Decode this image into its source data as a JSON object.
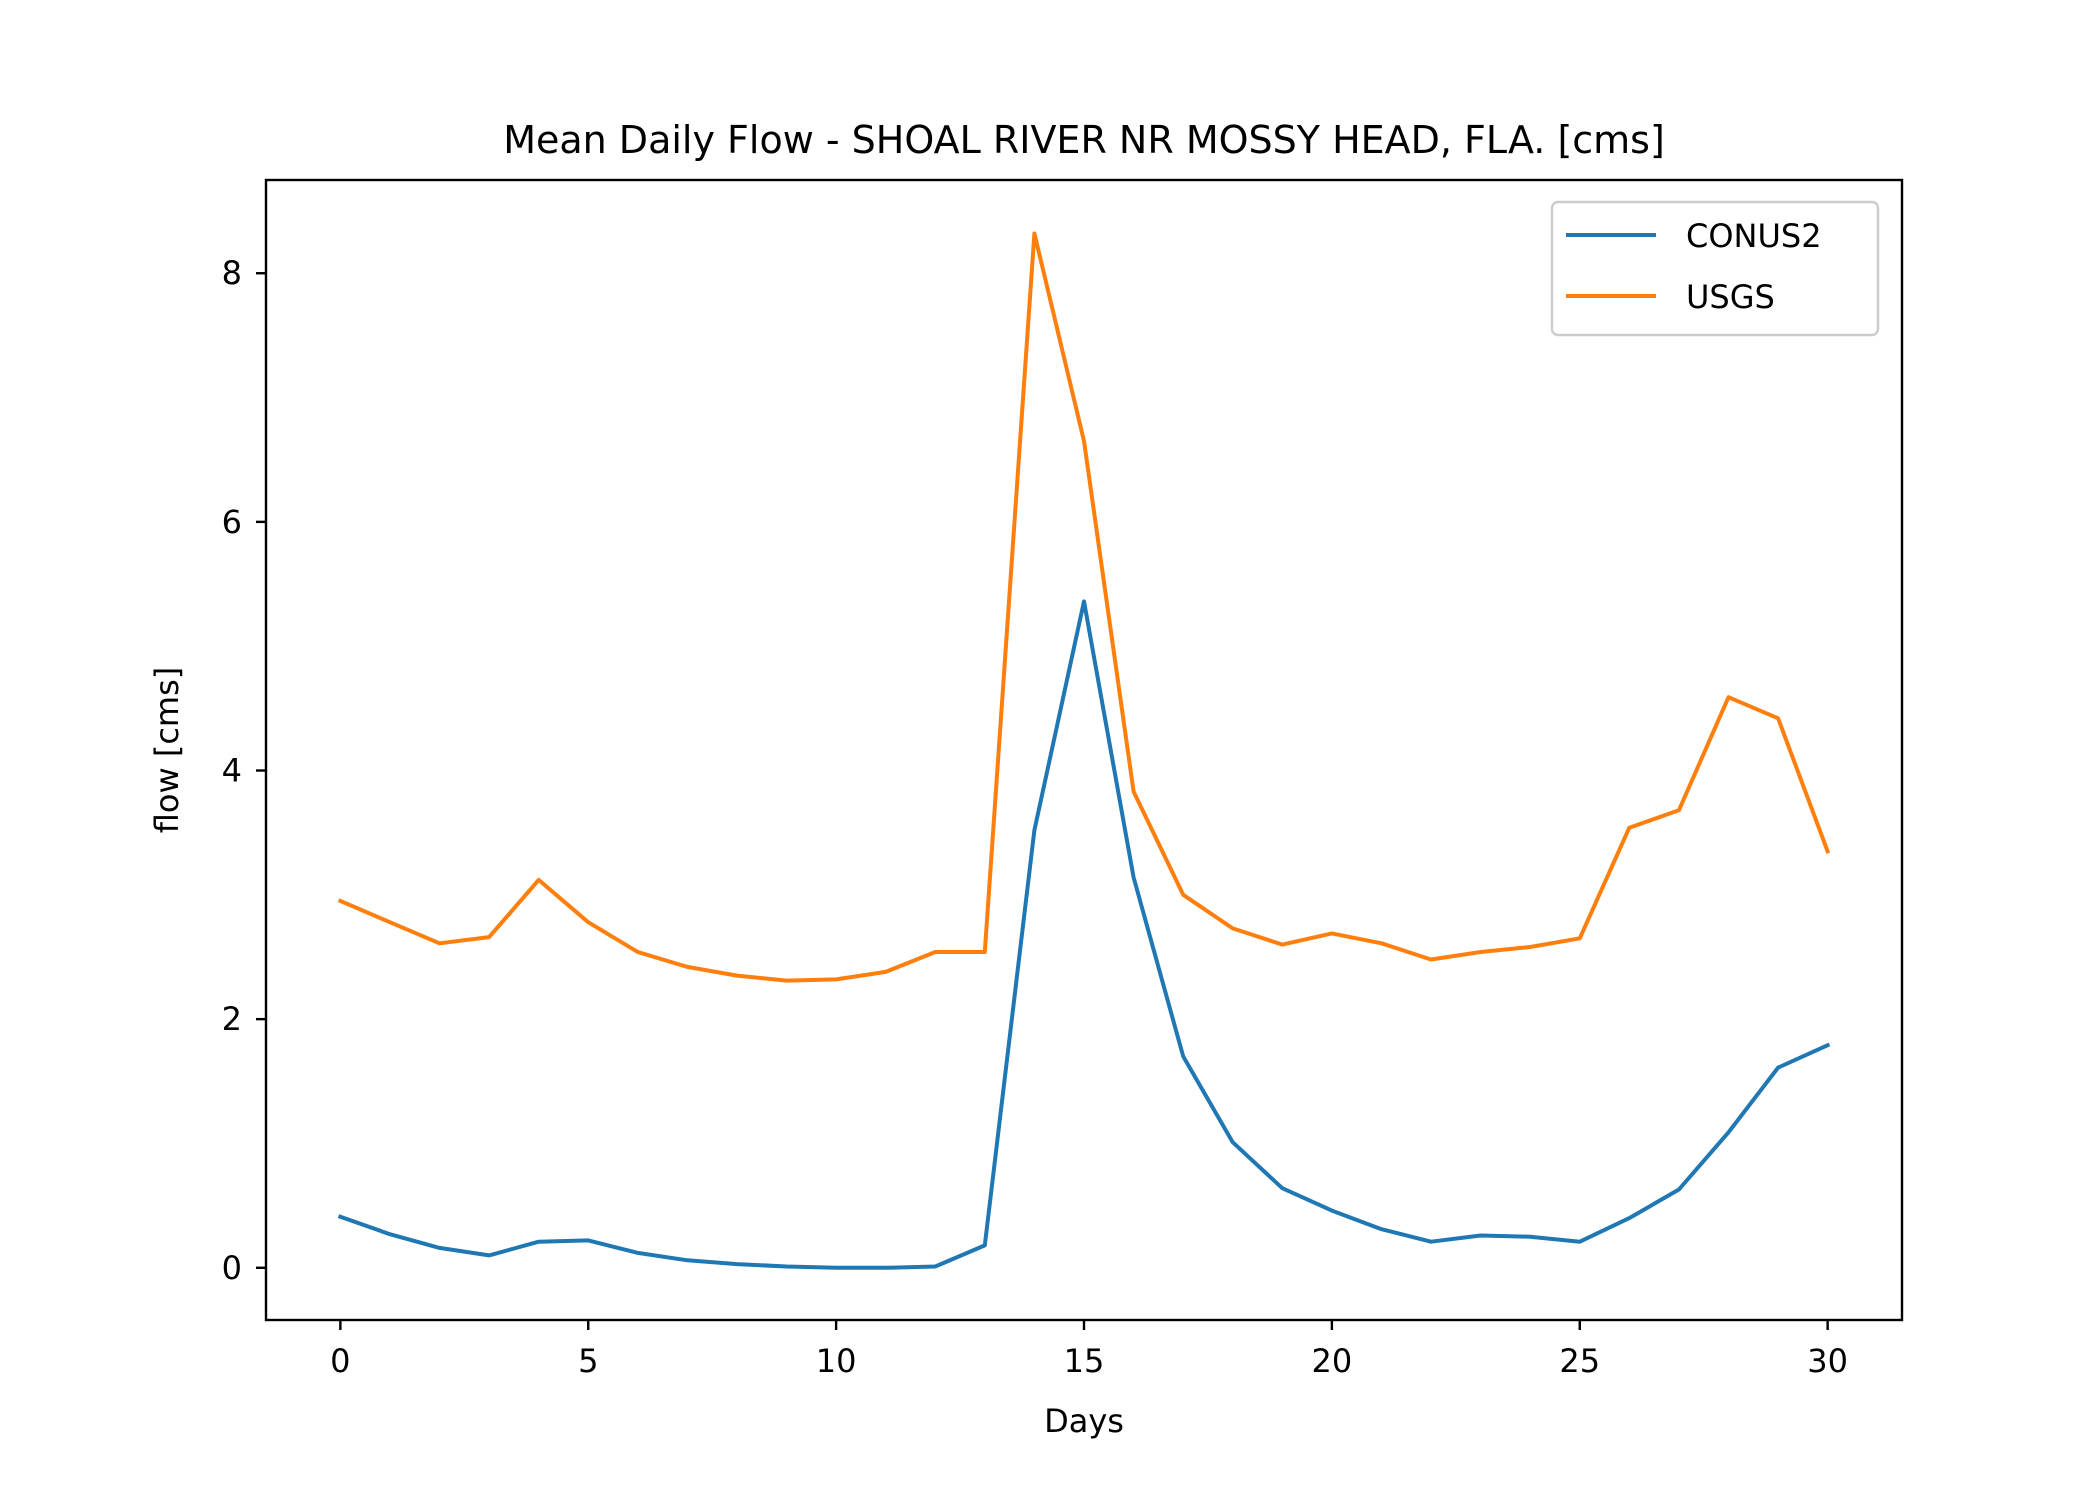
{
  "chart_data": {
    "type": "line",
    "title": "Mean Daily Flow - SHOAL RIVER NR MOSSY HEAD, FLA. [cms]",
    "xlabel": "Days",
    "ylabel": "flow [cms]",
    "xlim": [
      -1.5,
      31.5
    ],
    "ylim": [
      -0.42,
      8.75
    ],
    "xticks": [
      0,
      5,
      10,
      15,
      20,
      25,
      30
    ],
    "yticks": [
      0,
      2,
      4,
      6,
      8
    ],
    "grid": false,
    "legend_position": "top-right",
    "x": [
      0,
      1,
      2,
      3,
      4,
      5,
      6,
      7,
      8,
      9,
      10,
      11,
      12,
      13,
      14,
      15,
      16,
      17,
      18,
      19,
      20,
      21,
      22,
      23,
      24,
      25,
      26,
      27,
      28,
      29,
      30
    ],
    "series": [
      {
        "name": "CONUS2",
        "color": "#1f77b4",
        "values": [
          0.41,
          0.27,
          0.16,
          0.1,
          0.21,
          0.22,
          0.12,
          0.06,
          0.03,
          0.01,
          0.0,
          0.0,
          0.01,
          0.18,
          3.52,
          5.36,
          3.14,
          1.7,
          1.01,
          0.64,
          0.46,
          0.31,
          0.21,
          0.26,
          0.25,
          0.21,
          0.4,
          0.63,
          1.09,
          1.61,
          1.79
        ]
      },
      {
        "name": "USGS",
        "color": "#ff7f0e",
        "values": [
          2.95,
          2.78,
          2.61,
          2.66,
          3.12,
          2.78,
          2.54,
          2.42,
          2.35,
          2.31,
          2.32,
          2.38,
          2.54,
          2.54,
          8.32,
          6.65,
          3.83,
          3.0,
          2.73,
          2.6,
          2.69,
          2.61,
          2.48,
          2.54,
          2.58,
          2.65,
          3.54,
          3.68,
          4.59,
          4.42,
          3.35
        ]
      }
    ]
  }
}
